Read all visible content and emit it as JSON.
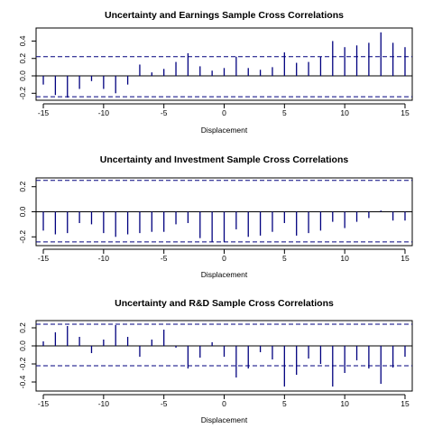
{
  "chart_data": [
    {
      "type": "bar",
      "title": "Uncertainty and Earnings Sample Cross Correlations",
      "xlabel": "Displacement",
      "ylabel": "",
      "x": [
        -15,
        -14,
        -13,
        -12,
        -11,
        -10,
        -9,
        -8,
        -7,
        -6,
        -5,
        -4,
        -3,
        -2,
        -1,
        0,
        1,
        2,
        3,
        4,
        5,
        6,
        7,
        8,
        9,
        10,
        11,
        12,
        13,
        14,
        15
      ],
      "values": [
        -0.1,
        -0.22,
        -0.25,
        -0.15,
        -0.06,
        -0.15,
        -0.2,
        -0.1,
        0.13,
        0.04,
        0.08,
        0.16,
        0.26,
        0.11,
        0.06,
        0.09,
        0.22,
        0.09,
        0.07,
        0.1,
        0.27,
        0.15,
        0.16,
        0.22,
        0.4,
        0.33,
        0.35,
        0.38,
        0.5,
        0.38,
        0.33
      ],
      "confidence_band": [
        -0.24,
        0.22
      ],
      "xlim": [
        -15.6,
        15.6
      ],
      "ylim": [
        -0.28,
        0.55
      ],
      "xticks": [
        -15,
        -10,
        -5,
        0,
        5,
        10,
        15
      ],
      "yticks": [
        -0.2,
        0.0,
        0.2,
        0.4
      ],
      "ytick_labels": [
        "-0.2",
        "0.0",
        "0.2",
        "0.4"
      ],
      "grid": false
    },
    {
      "type": "bar",
      "title": "Uncertainty and Investment Sample Cross Correlations",
      "xlabel": "Displacement",
      "ylabel": "",
      "x": [
        -15,
        -14,
        -13,
        -12,
        -11,
        -10,
        -9,
        -8,
        -7,
        -6,
        -5,
        -4,
        -3,
        -2,
        -1,
        0,
        1,
        2,
        3,
        4,
        5,
        6,
        7,
        8,
        9,
        10,
        11,
        12,
        13,
        14,
        15
      ],
      "values": [
        -0.15,
        -0.18,
        -0.17,
        -0.09,
        -0.1,
        -0.17,
        -0.2,
        -0.18,
        -0.17,
        -0.16,
        -0.16,
        -0.1,
        -0.09,
        -0.21,
        -0.24,
        -0.24,
        -0.14,
        -0.2,
        -0.19,
        -0.16,
        -0.09,
        -0.19,
        -0.17,
        -0.15,
        -0.08,
        -0.13,
        -0.08,
        -0.05,
        0.01,
        -0.07,
        -0.07
      ],
      "confidence_band": [
        -0.24,
        0.25
      ],
      "xlim": [
        -15.6,
        15.6
      ],
      "ylim": [
        -0.27,
        0.27
      ],
      "xticks": [
        -15,
        -10,
        -5,
        0,
        5,
        10,
        15
      ],
      "yticks": [
        -0.2,
        0.0,
        0.2
      ],
      "ytick_labels": [
        "-0.2",
        "0.0",
        "0.2"
      ],
      "grid": false
    },
    {
      "type": "bar",
      "title": "Uncertainty and R&D Sample Cross Correlations",
      "xlabel": "Displacement",
      "ylabel": "",
      "x": [
        -15,
        -14,
        -13,
        -12,
        -11,
        -10,
        -9,
        -8,
        -7,
        -6,
        -5,
        -4,
        -3,
        -2,
        -1,
        0,
        1,
        2,
        3,
        4,
        5,
        6,
        7,
        8,
        9,
        10,
        11,
        12,
        13,
        14,
        15
      ],
      "values": [
        0.05,
        0.15,
        0.22,
        0.1,
        -0.08,
        0.07,
        0.23,
        0.1,
        -0.12,
        0.07,
        0.18,
        -0.02,
        -0.25,
        -0.13,
        0.04,
        -0.12,
        -0.35,
        -0.25,
        -0.07,
        -0.15,
        -0.45,
        -0.32,
        -0.14,
        -0.2,
        -0.45,
        -0.3,
        -0.16,
        -0.25,
        -0.42,
        -0.24,
        -0.12
      ],
      "confidence_band": [
        -0.22,
        0.24
      ],
      "xlim": [
        -15.6,
        15.6
      ],
      "ylim": [
        -0.5,
        0.28
      ],
      "xticks": [
        -15,
        -10,
        -5,
        0,
        5,
        10,
        15
      ],
      "yticks": [
        -0.4,
        -0.2,
        0.0,
        0.2
      ],
      "ytick_labels": [
        "-0.4",
        "-0.2",
        "0.0",
        "0.2"
      ],
      "grid": false
    }
  ],
  "colors": {
    "bars": "#00007f",
    "frame": "#000000",
    "band": "#00007f",
    "text": "#000000"
  }
}
